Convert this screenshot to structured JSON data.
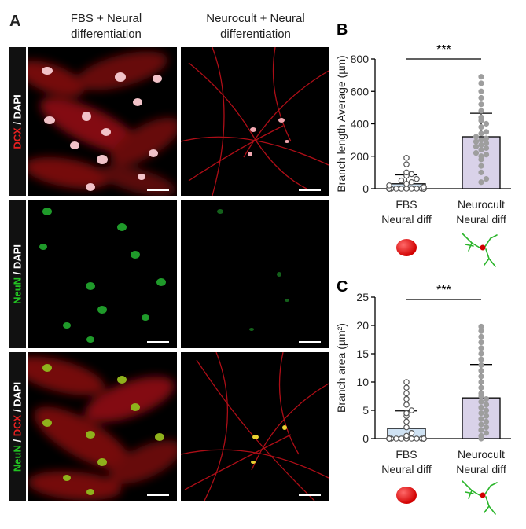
{
  "figure": {
    "panel_a": {
      "letter": "A",
      "columns": [
        {
          "line1": "FBS + Neural",
          "line2": "differentiation"
        },
        {
          "line1": "Neurocult + Neural",
          "line2": "differentiation"
        }
      ],
      "rows": [
        {
          "parts": [
            {
              "text": "DCX",
              "color": "#e62020"
            },
            {
              "text": " / ",
              "color": "#ffffff"
            },
            {
              "text": "DAPI",
              "color": "#ffffff"
            }
          ]
        },
        {
          "parts": [
            {
              "text": "NeuN",
              "color": "#22c322"
            },
            {
              "text": " / ",
              "color": "#ffffff"
            },
            {
              "text": "DAPI",
              "color": "#ffffff"
            }
          ]
        },
        {
          "parts": [
            {
              "text": "NeuN",
              "color": "#22c322"
            },
            {
              "text": " / ",
              "color": "#ffffff"
            },
            {
              "text": "DCX",
              "color": "#e62020"
            },
            {
              "text": " / ",
              "color": "#ffffff"
            },
            {
              "text": "DAPI",
              "color": "#ffffff"
            }
          ]
        }
      ]
    },
    "colors": {
      "fbs_bar": "#cfe2f3",
      "neurocult_bar": "#d9d2e9",
      "points": "#9e9e9e",
      "sphere": "#d10000",
      "neuron": "#2bb52b"
    }
  },
  "chart_data": [
    {
      "panel": "B",
      "type": "bar",
      "ylabel": "Branch length Average (µm)",
      "ylim": [
        0,
        800
      ],
      "yticks": [
        0,
        200,
        400,
        600,
        800
      ],
      "categories": [
        {
          "line1": "FBS",
          "line2": "Neural diff"
        },
        {
          "line1": "Neurocult",
          "line2": "Neural diff"
        }
      ],
      "values": [
        30,
        320
      ],
      "errors": [
        55,
        145
      ],
      "significance": "***",
      "points": [
        [
          0,
          0,
          0,
          0,
          0,
          0,
          0,
          0,
          0,
          0,
          0,
          0,
          0,
          0,
          0,
          0,
          0,
          0,
          0,
          0,
          0,
          10,
          20,
          30,
          40,
          50,
          60,
          80,
          90,
          100,
          150,
          190
        ],
        [
          40,
          60,
          100,
          140,
          180,
          200,
          210,
          220,
          240,
          250,
          260,
          270,
          280,
          290,
          300,
          310,
          320,
          340,
          350,
          380,
          400,
          420,
          440,
          480,
          520,
          560,
          600,
          650,
          690
        ]
      ]
    },
    {
      "panel": "C",
      "type": "bar",
      "ylabel": "Branch area (µm²)",
      "ylim": [
        0,
        25
      ],
      "yticks": [
        0,
        5,
        10,
        15,
        20,
        25
      ],
      "categories": [
        {
          "line1": "FBS",
          "line2": "Neural diff"
        },
        {
          "line1": "Neurocult",
          "line2": "Neural diff"
        }
      ],
      "values": [
        1.8,
        7.2
      ],
      "errors": [
        3.1,
        5.9
      ],
      "significance": "***",
      "points": [
        [
          0,
          0,
          0,
          0,
          0,
          0,
          0,
          0,
          0,
          0,
          0,
          0,
          0,
          0,
          0,
          0,
          0,
          0,
          0,
          0.5,
          1,
          2,
          3,
          4,
          4.5,
          5,
          6,
          7,
          8,
          9,
          10
        ],
        [
          0,
          0.5,
          1,
          1.5,
          2,
          2.5,
          3,
          3.5,
          4,
          4.5,
          5,
          5.5,
          6,
          6.5,
          7,
          7.5,
          8,
          9,
          10,
          11,
          12,
          13,
          14,
          15,
          16,
          17,
          18,
          19,
          19.8
        ]
      ]
    }
  ]
}
